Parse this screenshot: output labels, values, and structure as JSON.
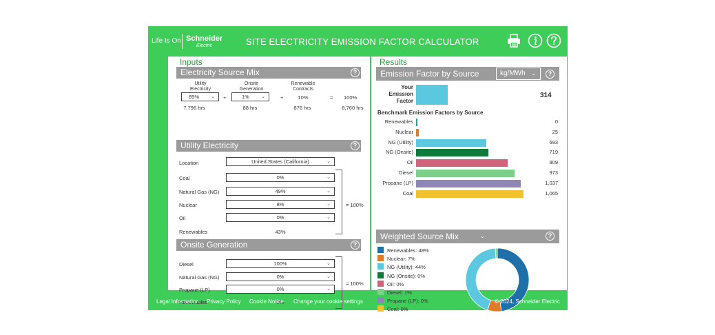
{
  "header": {
    "brand_tagline": "Life Is On",
    "brand_name": "Schneider",
    "brand_sub": "Electric",
    "title": "SITE ELECTRICITY EMISSION FACTOR CALCULATOR",
    "help_icon": "?"
  },
  "inputs": {
    "title": "Inputs",
    "mix": {
      "title": "Electricity Source Mix",
      "utility_label": "Utility\nElectricity",
      "onsite_label": "Onsite\nGeneration",
      "renewable_label": "Renewable\nContracts",
      "utility_value": "89%",
      "onsite_value": "1%",
      "renewable_value": "10%",
      "total_value": "100%",
      "plus1": "+",
      "plus2": "+",
      "equals": "=",
      "utility_hrs": "7,796 hrs",
      "onsite_hrs": "88 hrs",
      "renewable_hrs": "876 hrs",
      "total_hrs": "8,760 hrs"
    },
    "utility": {
      "title": "Utility Electricity",
      "location_label": "Location",
      "location_value": "United States (California)",
      "rows": [
        {
          "label": "Coal",
          "value": "0%"
        },
        {
          "label": "Natural Gas (NG)",
          "value": "49%"
        },
        {
          "label": "Nuclear",
          "value": "8%"
        },
        {
          "label": "Oil",
          "value": "0%"
        }
      ],
      "renewables_label": "Renewables",
      "renewables_value": "43%",
      "total": "= 100%"
    },
    "onsite": {
      "title": "Onsite Generation",
      "rows": [
        {
          "label": "Diesel",
          "value": "100%"
        },
        {
          "label": "Natural Gas (NG)",
          "value": "0%"
        },
        {
          "label": "Propane (LP)",
          "value": "0%"
        }
      ],
      "renewables_label": "Renewables",
      "renewables_value": "0%",
      "total": "= 100%"
    }
  },
  "results": {
    "title": "Results",
    "ef": {
      "title": "Emission Factor by Source",
      "unit": "kg/MWh",
      "your_label": "Your\nEmission\nFactor",
      "your_value": "314",
      "your_value_num": 314
    },
    "benchmark": {
      "title": "Benchmark Emission Factors by Source",
      "max": 1065,
      "rows": [
        {
          "label": "Renewables",
          "value": "0",
          "num": 0,
          "color": "#2a9d8f"
        },
        {
          "label": "Nuclear",
          "value": "25",
          "num": 25,
          "color": "#e07b2a"
        },
        {
          "label": "NG (Utility)",
          "value": "693",
          "num": 693,
          "color": "#5bc8e0"
        },
        {
          "label": "NG (Onsite)",
          "value": "719",
          "num": 719,
          "color": "#0f7a3a"
        },
        {
          "label": "Oil",
          "value": "909",
          "num": 909,
          "color": "#d0637c"
        },
        {
          "label": "Diesel",
          "value": "973",
          "num": 973,
          "color": "#7dd08a"
        },
        {
          "label": "Propane (LP)",
          "value": "1,037",
          "num": 1037,
          "color": "#8e86b5"
        },
        {
          "label": "Coal",
          "value": "1,065",
          "num": 1065,
          "color": "#f2c12e"
        }
      ]
    },
    "mix": {
      "title": "Weighted Source Mix",
      "legend": [
        {
          "label": "Renewables: 48%",
          "pct": 48,
          "color": "#1f6fa8"
        },
        {
          "label": "Nuclear: 7%",
          "pct": 7,
          "color": "#e07b2a"
        },
        {
          "label": "NG (Utility): 44%",
          "pct": 44,
          "color": "#5bc8e0"
        },
        {
          "label": "NG (Onsite): 0%",
          "pct": 0,
          "color": "#0f7a3a"
        },
        {
          "label": "Oil: 0%",
          "pct": 0,
          "color": "#d0637c"
        },
        {
          "label": "Diesel: 1%",
          "pct": 1,
          "color": "#7dd08a"
        },
        {
          "label": "Propane (LP): 0%",
          "pct": 0,
          "color": "#8e86b5"
        },
        {
          "label": "Coal: 0%",
          "pct": 0,
          "color": "#f2c12e"
        }
      ]
    }
  },
  "footer": {
    "links": [
      "Legal Information",
      "Privacy Policy",
      "Cookie Notice",
      "Change your cookie settings"
    ],
    "copyright": "© 2024, Schneider Electric"
  },
  "colors": {
    "brand_green": "#3dcd58",
    "bar_gray": "#9b9b9b",
    "your_factor": "#5bc8e0"
  }
}
